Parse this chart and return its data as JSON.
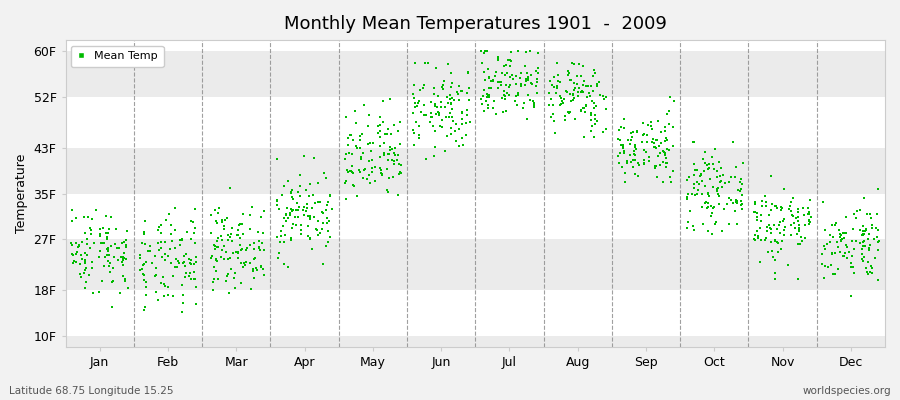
{
  "title": "Monthly Mean Temperatures 1901  -  2009",
  "ylabel": "Temperature",
  "xlabel_labels": [
    "Jan",
    "Feb",
    "Mar",
    "Apr",
    "May",
    "Jun",
    "Jul",
    "Aug",
    "Sep",
    "Oct",
    "Nov",
    "Dec"
  ],
  "ytick_labels": [
    "10F",
    "18F",
    "27F",
    "35F",
    "43F",
    "52F",
    "60F"
  ],
  "ytick_values": [
    10,
    18,
    27,
    35,
    43,
    52,
    60
  ],
  "ylim": [
    8,
    62
  ],
  "legend_label": "Mean Temp",
  "dot_color": "#00bb00",
  "bg_color": "#f2f2f2",
  "band_colors": [
    "#ffffff",
    "#ebebeb"
  ],
  "bottom_left_text": "Latitude 68.75 Longitude 15.25",
  "bottom_right_text": "worldspecies.org",
  "n_years": 109,
  "monthly_means": [
    25.0,
    22.5,
    25.5,
    31.5,
    41.0,
    49.5,
    54.5,
    52.0,
    43.0,
    35.5,
    29.5,
    26.5
  ],
  "monthly_stds": [
    3.8,
    4.2,
    3.5,
    3.8,
    4.2,
    3.8,
    3.2,
    3.2,
    3.2,
    3.2,
    3.5,
    3.5
  ],
  "monthly_mins": [
    11,
    10,
    13,
    22,
    30,
    40,
    46,
    45,
    37,
    27,
    20,
    17
  ],
  "monthly_maxs": [
    36,
    36,
    36,
    42,
    52,
    58,
    60,
    58,
    52,
    44,
    38,
    36
  ],
  "seed": 42
}
